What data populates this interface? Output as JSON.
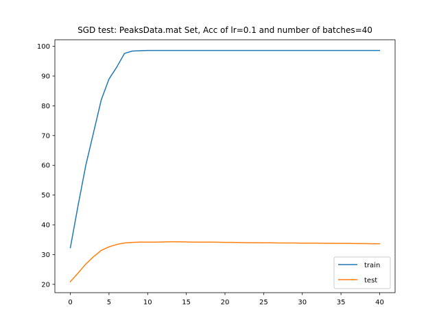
{
  "chart_data": {
    "type": "line",
    "title": "SGD test: PeaksData.mat Set, Acc of lr=0.1 and number of batches=40",
    "xlabel": "",
    "ylabel": "",
    "xlim": [
      -2,
      42
    ],
    "ylim": [
      17.2,
      102.2
    ],
    "x_ticks": [
      0,
      5,
      10,
      15,
      20,
      25,
      30,
      35,
      40
    ],
    "y_ticks": [
      20,
      30,
      40,
      50,
      60,
      70,
      80,
      90,
      100
    ],
    "x_tick_labels": [
      "0",
      "5",
      "10",
      "15",
      "20",
      "25",
      "30",
      "35",
      "40"
    ],
    "y_tick_labels": [
      "20",
      "30",
      "40",
      "50",
      "60",
      "70",
      "80",
      "90",
      "100"
    ],
    "grid": false,
    "legend_position": "lower-right",
    "x": [
      0,
      1,
      2,
      3,
      4,
      5,
      6,
      7,
      8,
      9,
      10,
      11,
      12,
      13,
      14,
      15,
      16,
      17,
      18,
      19,
      20,
      21,
      22,
      23,
      24,
      25,
      26,
      27,
      28,
      29,
      30,
      31,
      32,
      33,
      34,
      35,
      36,
      37,
      38,
      39,
      40
    ],
    "series": [
      {
        "name": "train",
        "color": "#1f77b4",
        "values": [
          32.3,
          46.5,
          60.0,
          71.0,
          82.0,
          89.0,
          93.0,
          97.6,
          98.4,
          98.5,
          98.6,
          98.6,
          98.6,
          98.6,
          98.6,
          98.6,
          98.6,
          98.6,
          98.6,
          98.6,
          98.6,
          98.6,
          98.6,
          98.6,
          98.6,
          98.6,
          98.6,
          98.6,
          98.6,
          98.6,
          98.6,
          98.6,
          98.6,
          98.6,
          98.6,
          98.6,
          98.6,
          98.6,
          98.6,
          98.6,
          98.6
        ]
      },
      {
        "name": "test",
        "color": "#ff7f0e",
        "values": [
          20.9,
          23.8,
          26.8,
          29.3,
          31.4,
          32.6,
          33.4,
          33.9,
          34.1,
          34.2,
          34.2,
          34.2,
          34.25,
          34.3,
          34.3,
          34.25,
          34.2,
          34.2,
          34.2,
          34.15,
          34.1,
          34.1,
          34.05,
          34.0,
          34.0,
          33.95,
          33.95,
          33.9,
          33.9,
          33.9,
          33.85,
          33.85,
          33.85,
          33.8,
          33.8,
          33.75,
          33.75,
          33.7,
          33.7,
          33.65,
          33.65
        ]
      }
    ]
  }
}
